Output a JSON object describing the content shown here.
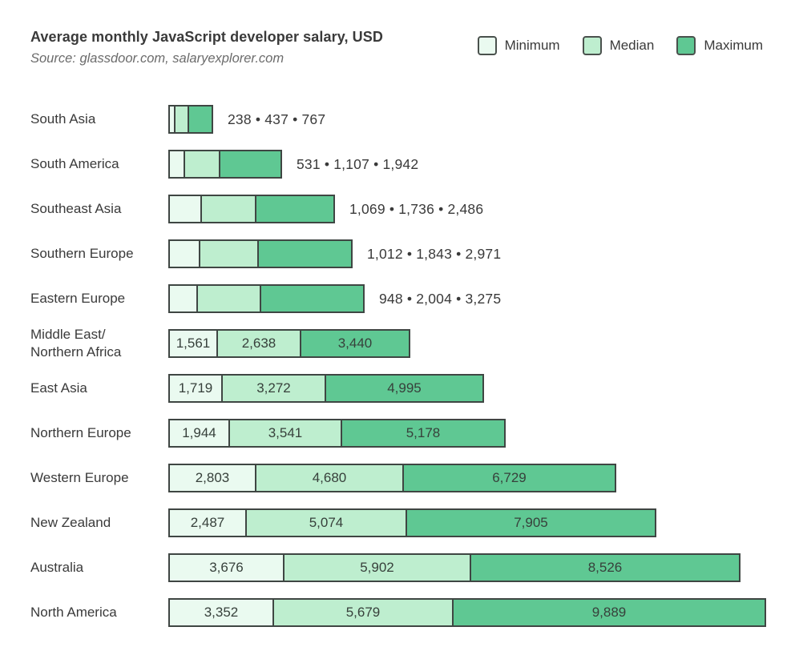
{
  "chart_data": {
    "type": "bar",
    "orientation": "horizontal",
    "stacked": true,
    "title": "Average monthly JavaScript developer salary, USD",
    "source": "Source: glassdoor.com, salaryexplorer.com",
    "unit": "USD",
    "legend_position": "top-right",
    "value_label_separator": " • ",
    "categories": [
      "South Asia",
      "South America",
      "Southeast Asia",
      "Southern Europe",
      "Eastern Europe",
      "Middle East/\nNorthern Africa",
      "East Asia",
      "Northern Europe",
      "Western Europe",
      "New Zealand",
      "Australia",
      "North America"
    ],
    "series": [
      {
        "name": "Minimum",
        "values": [
          238,
          531,
          1069,
          1012,
          948,
          1561,
          1719,
          1944,
          2803,
          2487,
          3676,
          3352
        ]
      },
      {
        "name": "Median",
        "values": [
          437,
          1107,
          1736,
          1843,
          2004,
          2638,
          3272,
          3541,
          4680,
          5074,
          5902,
          5679
        ]
      },
      {
        "name": "Maximum",
        "values": [
          767,
          1942,
          2486,
          2971,
          3275,
          3440,
          4995,
          5178,
          6729,
          7905,
          8526,
          9889
        ]
      }
    ],
    "outside_label_rows": [
      0,
      1,
      2,
      3,
      4
    ]
  },
  "colors": {
    "minimum": "#eafaf0",
    "median": "#beeecf",
    "maximum": "#5fc893",
    "segment_border": "#3f4643",
    "text": "#3a3a3a",
    "source_text": "#6b6b6b"
  }
}
